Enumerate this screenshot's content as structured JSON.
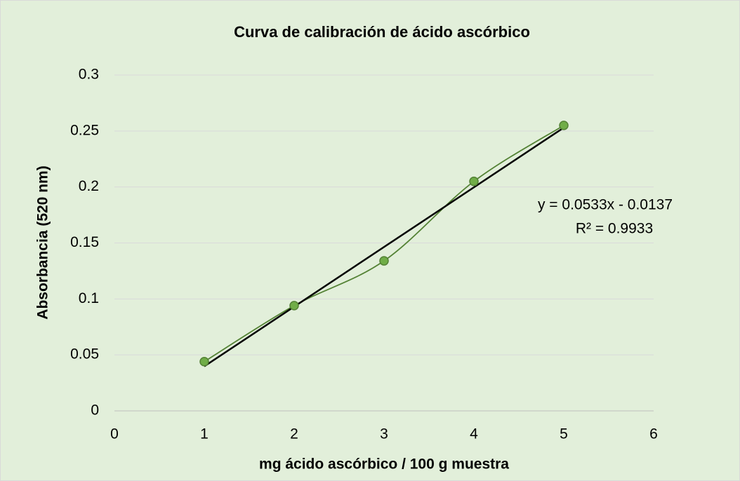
{
  "chart_data": {
    "type": "scatter",
    "title": "Curva de calibración de ácido ascórbico",
    "xlabel": "mg ácido ascórbico / 100 g muestra",
    "ylabel": "Absorbancia (520 nm)",
    "x": [
      1,
      2,
      3,
      4,
      5
    ],
    "values": [
      0.044,
      0.094,
      0.134,
      0.205,
      0.255
    ],
    "color": "#70ad47",
    "line_color": "#548235",
    "smooth": true,
    "trendline": {
      "color": "#000000",
      "equation": "y = 0.0533x - 0.0137",
      "r2": "R² = 0.9933"
    },
    "xlim": [
      0,
      6
    ],
    "xticks": [
      0,
      1,
      2,
      3,
      4,
      5,
      6
    ],
    "ylim": [
      0,
      0.3
    ],
    "yticks": [
      0,
      0.05,
      0.1,
      0.15,
      0.2,
      0.25,
      0.3
    ],
    "grid": true
  }
}
